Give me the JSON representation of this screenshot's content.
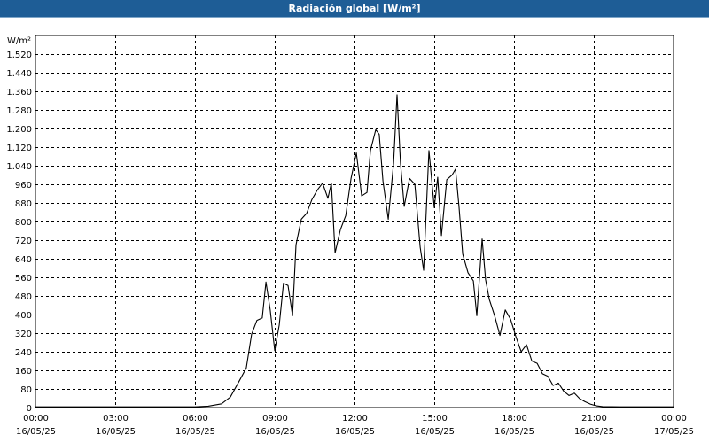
{
  "window": {
    "title": "Radiación global [W/m²]"
  },
  "chart_data": {
    "type": "line",
    "title": "Radiación global [W/m²]",
    "ylabel": "W/m²",
    "ylim": [
      0,
      1600
    ],
    "yticks": [
      0,
      80,
      160,
      240,
      320,
      400,
      480,
      560,
      640,
      720,
      800,
      880,
      960,
      1040,
      1120,
      1200,
      1280,
      1360,
      1440,
      1520
    ],
    "ytick_labels": [
      "0",
      "80",
      "160",
      "240",
      "320",
      "400",
      "480",
      "560",
      "640",
      "720",
      "800",
      "880",
      "960",
      "1.040",
      "1.120",
      "1.200",
      "1.280",
      "1.360",
      "1.440",
      "1.520"
    ],
    "xlim": [
      0,
      24
    ],
    "xticks": [
      {
        "x": 0,
        "time": "00:00",
        "date": "16/05/25"
      },
      {
        "x": 3,
        "time": "03:00",
        "date": "16/05/25"
      },
      {
        "x": 6,
        "time": "06:00",
        "date": "16/05/25"
      },
      {
        "x": 9,
        "time": "09:00",
        "date": "16/05/25"
      },
      {
        "x": 12,
        "time": "12:00",
        "date": "16/05/25"
      },
      {
        "x": 15,
        "time": "15:00",
        "date": "16/05/25"
      },
      {
        "x": 18,
        "time": "18:00",
        "date": "16/05/25"
      },
      {
        "x": 21,
        "time": "21:00",
        "date": "16/05/25"
      },
      {
        "x": 24,
        "time": "00:00",
        "date": "17/05/25"
      }
    ],
    "grid": true,
    "line_color": "#000000",
    "series": [
      {
        "values": [
          [
            0,
            3
          ],
          [
            5.0,
            3
          ],
          [
            6.0,
            3
          ],
          [
            6.5,
            6
          ],
          [
            7.0,
            16
          ],
          [
            7.33,
            45
          ],
          [
            7.67,
            115
          ],
          [
            7.93,
            170
          ],
          [
            8.13,
            315
          ],
          [
            8.33,
            375
          ],
          [
            8.53,
            385
          ],
          [
            8.67,
            540
          ],
          [
            8.83,
            420
          ],
          [
            9.0,
            245
          ],
          [
            9.17,
            355
          ],
          [
            9.33,
            535
          ],
          [
            9.5,
            525
          ],
          [
            9.67,
            395
          ],
          [
            9.8,
            700
          ],
          [
            10.0,
            810
          ],
          [
            10.2,
            835
          ],
          [
            10.4,
            895
          ],
          [
            10.6,
            935
          ],
          [
            10.8,
            965
          ],
          [
            11.0,
            900
          ],
          [
            11.13,
            965
          ],
          [
            11.27,
            665
          ],
          [
            11.47,
            765
          ],
          [
            11.67,
            825
          ],
          [
            11.87,
            985
          ],
          [
            12.07,
            1095
          ],
          [
            12.27,
            910
          ],
          [
            12.47,
            925
          ],
          [
            12.6,
            1105
          ],
          [
            12.8,
            1195
          ],
          [
            12.93,
            1175
          ],
          [
            13.07,
            975
          ],
          [
            13.27,
            810
          ],
          [
            13.47,
            1050
          ],
          [
            13.6,
            1345
          ],
          [
            13.73,
            1050
          ],
          [
            13.87,
            865
          ],
          [
            14.07,
            985
          ],
          [
            14.27,
            960
          ],
          [
            14.47,
            690
          ],
          [
            14.6,
            590
          ],
          [
            14.8,
            1105
          ],
          [
            15.0,
            860
          ],
          [
            15.13,
            990
          ],
          [
            15.27,
            740
          ],
          [
            15.47,
            980
          ],
          [
            15.67,
            1000
          ],
          [
            15.8,
            1025
          ],
          [
            15.93,
            865
          ],
          [
            16.07,
            660
          ],
          [
            16.27,
            580
          ],
          [
            16.47,
            545
          ],
          [
            16.6,
            395
          ],
          [
            16.8,
            725
          ],
          [
            16.93,
            550
          ],
          [
            17.07,
            465
          ],
          [
            17.27,
            395
          ],
          [
            17.47,
            310
          ],
          [
            17.67,
            420
          ],
          [
            17.87,
            380
          ],
          [
            18.07,
            305
          ],
          [
            18.27,
            240
          ],
          [
            18.47,
            270
          ],
          [
            18.67,
            200
          ],
          [
            18.87,
            190
          ],
          [
            19.07,
            145
          ],
          [
            19.27,
            135
          ],
          [
            19.47,
            95
          ],
          [
            19.67,
            105
          ],
          [
            19.87,
            70
          ],
          [
            20.07,
            52
          ],
          [
            20.27,
            62
          ],
          [
            20.47,
            38
          ],
          [
            20.67,
            25
          ],
          [
            20.87,
            15
          ],
          [
            21.07,
            8
          ],
          [
            21.33,
            4
          ],
          [
            22.0,
            3
          ],
          [
            24.0,
            3
          ]
        ]
      }
    ]
  }
}
